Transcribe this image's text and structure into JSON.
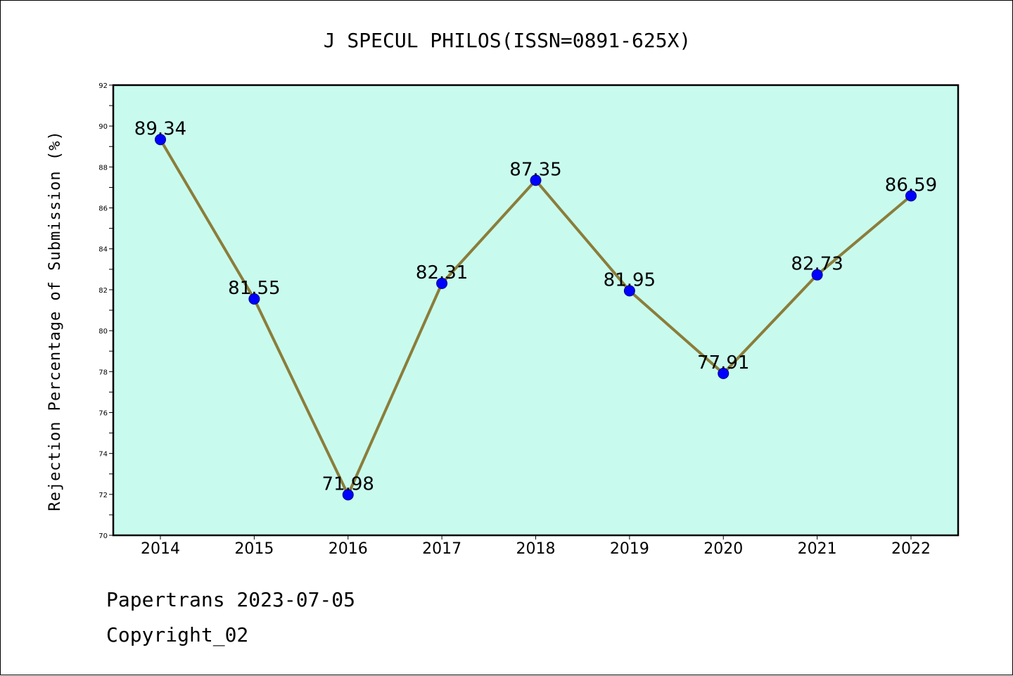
{
  "chart_data": {
    "type": "line",
    "title": "J SPECUL PHILOS(ISSN=0891-625X)",
    "xlabel": "",
    "ylabel": "Rejection Percentage of Submission (%)",
    "categories": [
      "2014",
      "2015",
      "2016",
      "2017",
      "2018",
      "2019",
      "2020",
      "2021",
      "2022"
    ],
    "series": [
      {
        "values": [
          89.34,
          81.55,
          71.98,
          82.31,
          87.35,
          81.95,
          77.91,
          82.73,
          86.59
        ],
        "labels": [
          "89.34",
          "81.55",
          "71.98",
          "82.31",
          "87.35",
          "81.95",
          "77.91",
          "82.73",
          "86.59"
        ]
      }
    ],
    "ylim": [
      70,
      92
    ],
    "yticks": [
      "70",
      "72",
      "74",
      "76",
      "78",
      "80",
      "82",
      "84",
      "86",
      "88",
      "90",
      "92"
    ],
    "grid": false,
    "colors": {
      "plot_background": "#c8fbee",
      "line": "#8b7d3a",
      "marker_fill": "#0000ff",
      "marker_edge": "#000080",
      "axes": "#000000"
    }
  },
  "footer": {
    "line1": "Papertrans 2023-07-05",
    "line2": "Copyright_02"
  }
}
